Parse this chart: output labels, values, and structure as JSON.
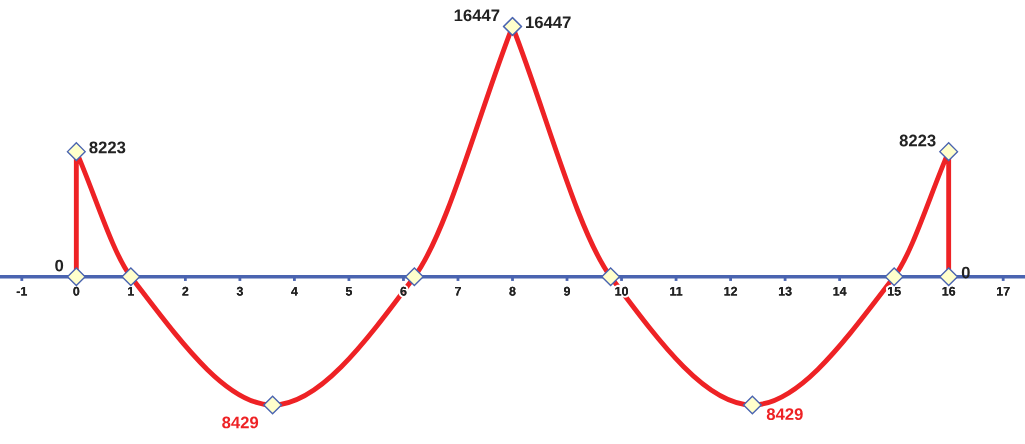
{
  "chart_data": {
    "type": "line",
    "x": [
      0,
      0,
      1,
      3.6,
      6.2,
      8,
      8,
      9.8,
      12.4,
      15,
      16,
      16
    ],
    "series": [
      {
        "color": "#ee2225",
        "values": [
          0,
          8223,
          0,
          -8429,
          0,
          16447,
          16447,
          0,
          -8429,
          0,
          8223,
          0
        ],
        "value_labels": [
          "0",
          "8223",
          null,
          null,
          null,
          "16447",
          "16447",
          null,
          null,
          null,
          "8223",
          "0"
        ]
      }
    ],
    "annotations": [
      {
        "text": "8429",
        "x": 3.6,
        "y": -8429
      },
      {
        "text": "8429",
        "x": 12.4,
        "y": -8429
      }
    ],
    "marker": "diamond",
    "line_style": "solid",
    "xlim": [
      -1.4,
      17.4
    ],
    "xticks": [
      -1,
      0,
      1,
      2,
      3,
      4,
      5,
      6,
      7,
      8,
      9,
      10,
      11,
      12,
      13,
      14,
      15,
      16,
      17
    ],
    "tick_labels": "x"
  }
}
